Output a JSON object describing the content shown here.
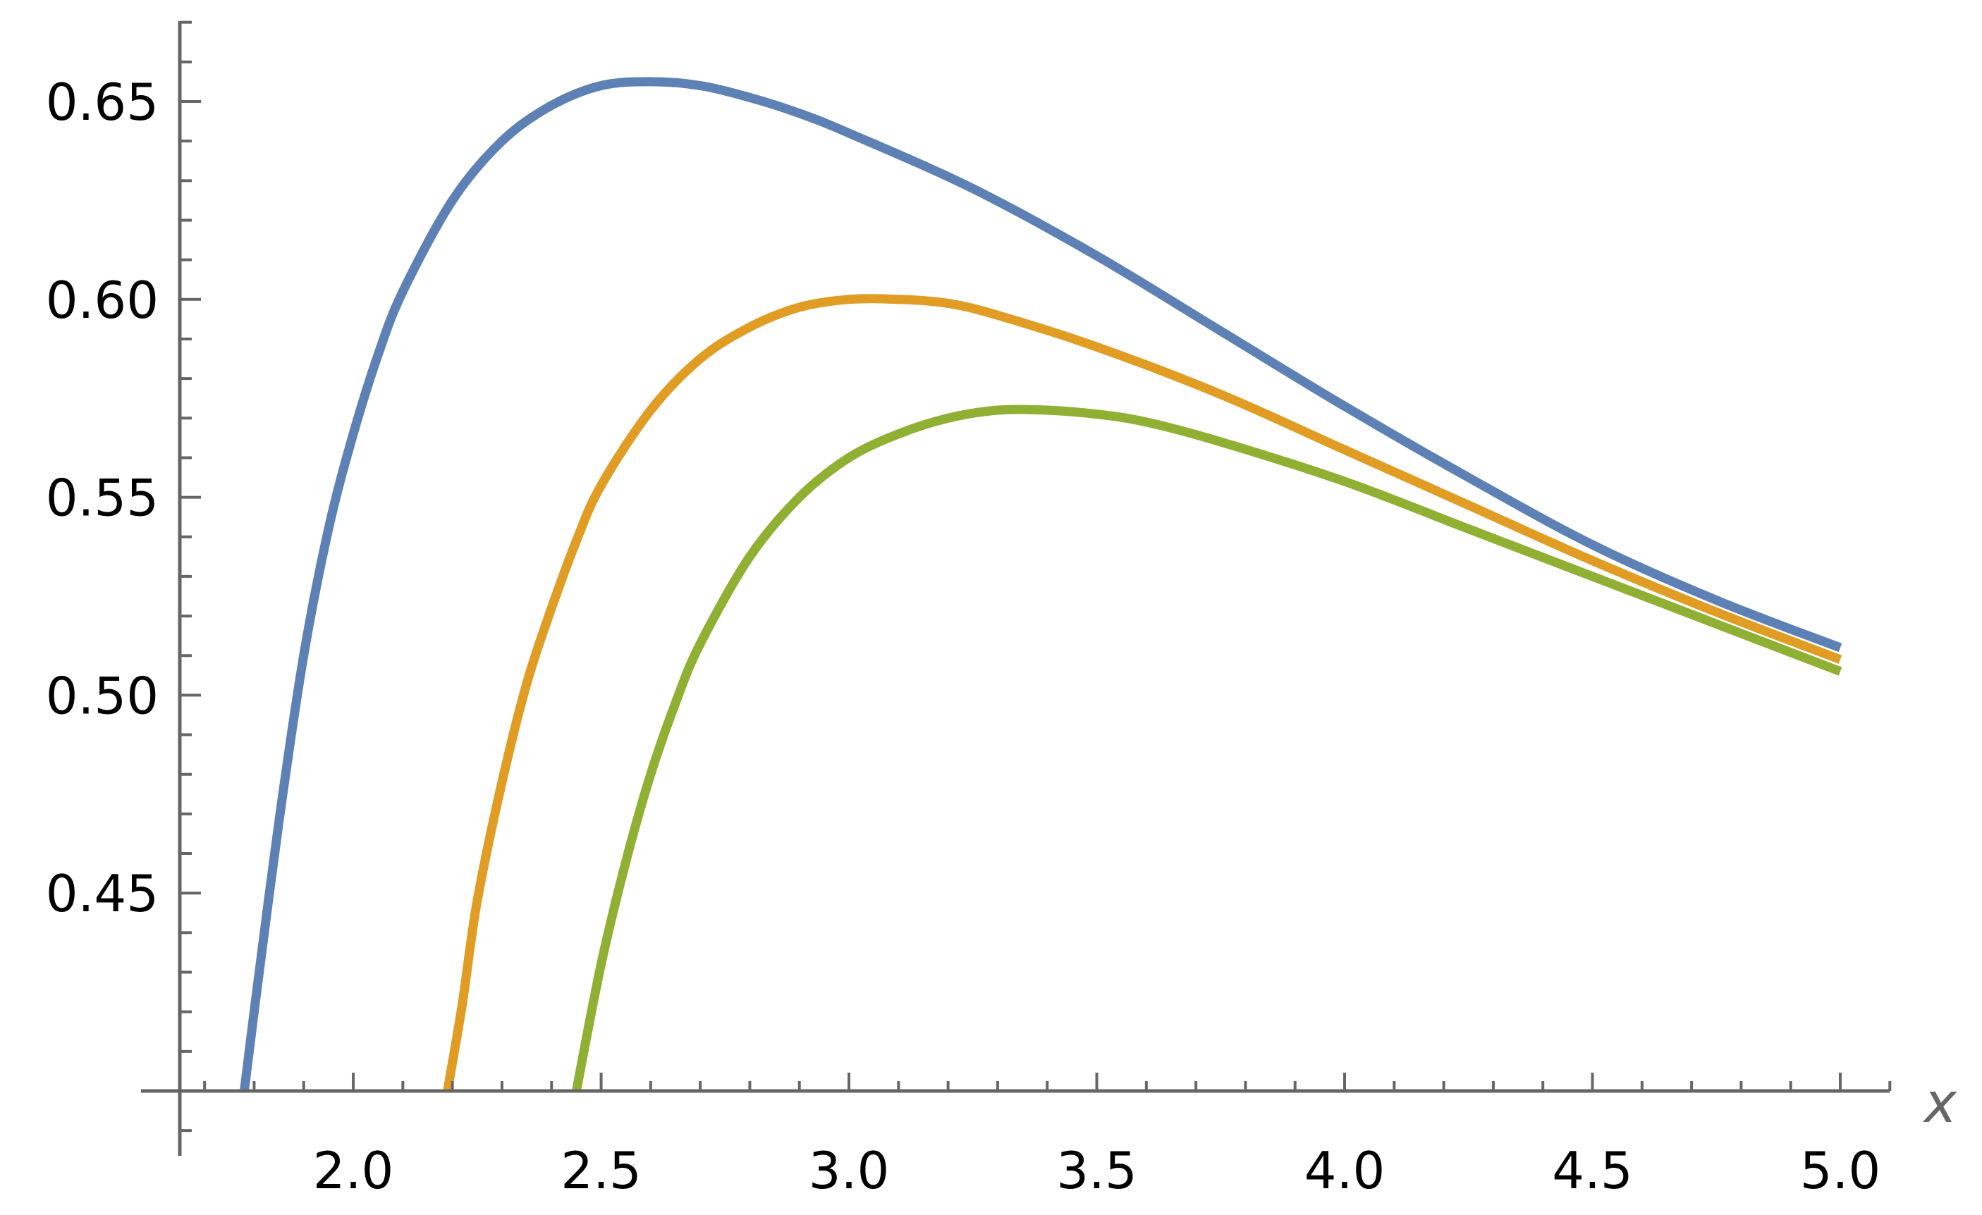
{
  "chart_data": {
    "type": "line",
    "title": "",
    "xlabel": "x",
    "ylabel": "",
    "xlim": [
      1.65,
      5.1
    ],
    "ylim": [
      0.392,
      0.67
    ],
    "x_axis_at_y": 0.4,
    "y_axis_at_x": 1.65,
    "x_major_ticks": [
      2.0,
      2.5,
      3.0,
      3.5,
      4.0,
      4.5,
      5.0
    ],
    "x_tick_labels": [
      "2.0",
      "2.5",
      "3.0",
      "3.5",
      "4.0",
      "4.5",
      "5.0"
    ],
    "y_major_ticks": [
      0.45,
      0.5,
      0.55,
      0.6,
      0.65
    ],
    "y_tick_labels": [
      "0.45",
      "0.50",
      "0.55",
      "0.60",
      "0.65"
    ],
    "grid": false,
    "legend": "none",
    "series": [
      {
        "color": "#5e81b5",
        "points": [
          [
            1.78,
            0.4
          ],
          [
            1.8,
            0.42
          ],
          [
            1.85,
            0.468
          ],
          [
            1.9,
            0.51
          ],
          [
            1.95,
            0.542
          ],
          [
            2.0,
            0.566
          ],
          [
            2.05,
            0.586
          ],
          [
            2.1,
            0.602
          ],
          [
            2.2,
            0.625
          ],
          [
            2.3,
            0.64
          ],
          [
            2.4,
            0.649
          ],
          [
            2.5,
            0.654
          ],
          [
            2.6,
            0.655
          ],
          [
            2.7,
            0.654
          ],
          [
            2.8,
            0.651
          ],
          [
            2.9,
            0.647
          ],
          [
            3.0,
            0.642
          ],
          [
            3.25,
            0.628
          ],
          [
            3.5,
            0.611
          ],
          [
            3.75,
            0.592
          ],
          [
            4.0,
            0.573
          ],
          [
            4.25,
            0.555
          ],
          [
            4.5,
            0.538
          ],
          [
            4.75,
            0.524
          ],
          [
            5.0,
            0.512
          ]
        ]
      },
      {
        "color": "#e19c24",
        "points": [
          [
            2.19,
            0.4
          ],
          [
            2.22,
            0.422
          ],
          [
            2.25,
            0.448
          ],
          [
            2.3,
            0.478
          ],
          [
            2.35,
            0.503
          ],
          [
            2.4,
            0.522
          ],
          [
            2.45,
            0.539
          ],
          [
            2.5,
            0.553
          ],
          [
            2.6,
            0.572
          ],
          [
            2.7,
            0.585
          ],
          [
            2.8,
            0.593
          ],
          [
            2.9,
            0.598
          ],
          [
            3.0,
            0.6
          ],
          [
            3.1,
            0.6
          ],
          [
            3.2,
            0.599
          ],
          [
            3.3,
            0.596
          ],
          [
            3.5,
            0.588
          ],
          [
            3.75,
            0.576
          ],
          [
            4.0,
            0.562
          ],
          [
            4.25,
            0.548
          ],
          [
            4.5,
            0.534
          ],
          [
            4.75,
            0.521
          ],
          [
            5.0,
            0.509
          ]
        ]
      },
      {
        "color": "#8fb032",
        "points": [
          [
            2.45,
            0.4
          ],
          [
            2.5,
            0.432
          ],
          [
            2.55,
            0.458
          ],
          [
            2.6,
            0.48
          ],
          [
            2.65,
            0.498
          ],
          [
            2.7,
            0.513
          ],
          [
            2.8,
            0.535
          ],
          [
            2.9,
            0.55
          ],
          [
            3.0,
            0.56
          ],
          [
            3.1,
            0.566
          ],
          [
            3.2,
            0.57
          ],
          [
            3.3,
            0.572
          ],
          [
            3.4,
            0.572
          ],
          [
            3.5,
            0.571
          ],
          [
            3.6,
            0.569
          ],
          [
            3.75,
            0.564
          ],
          [
            4.0,
            0.554
          ],
          [
            4.25,
            0.542
          ],
          [
            4.5,
            0.53
          ],
          [
            4.75,
            0.518
          ],
          [
            5.0,
            0.506
          ]
        ]
      }
    ]
  }
}
